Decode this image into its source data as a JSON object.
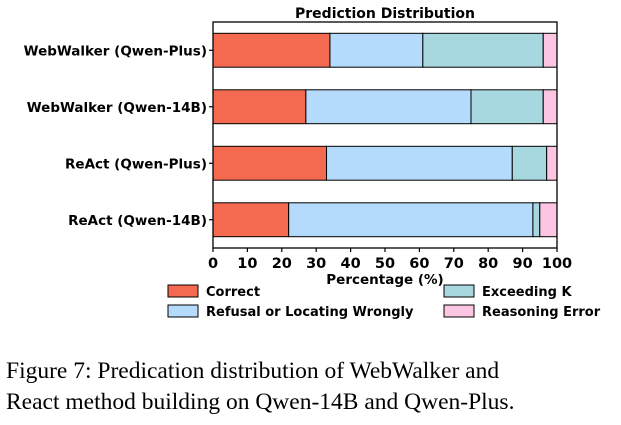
{
  "chart_data": {
    "type": "bar",
    "orientation": "horizontal",
    "stacked": true,
    "title": "Prediction Distribution",
    "xlabel": "Percentage (%)",
    "ylabel": "",
    "xlim": [
      0,
      100
    ],
    "xticks": [
      "0",
      "10",
      "20",
      "30",
      "40",
      "50",
      "60",
      "70",
      "80",
      "90",
      "100"
    ],
    "categories": [
      "WebWalker (Qwen-Plus)",
      "WebWalker (Qwen-14B)",
      "ReAct (Qwen-Plus)",
      "ReAct (Qwen-14B)"
    ],
    "series": [
      {
        "name": "Correct",
        "color": "#f46a50",
        "values": [
          34,
          27,
          33,
          22
        ]
      },
      {
        "name": "Refusal or Locating Wrongly",
        "color": "#b4dafc",
        "values": [
          27,
          48,
          54,
          71
        ]
      },
      {
        "name": "Exceeding K",
        "color": "#a8d8df",
        "values": [
          35,
          21,
          10,
          2
        ]
      },
      {
        "name": "Reasoning Error",
        "color": "#fcc6e2",
        "values": [
          4,
          4,
          3,
          5
        ]
      }
    ],
    "legend_position": "bottom",
    "grid": false
  },
  "caption": {
    "line1": "Figure 7: Predication distribution of WebWalker and",
    "line2": "React method building on Qwen-14B and Qwen-Plus."
  }
}
